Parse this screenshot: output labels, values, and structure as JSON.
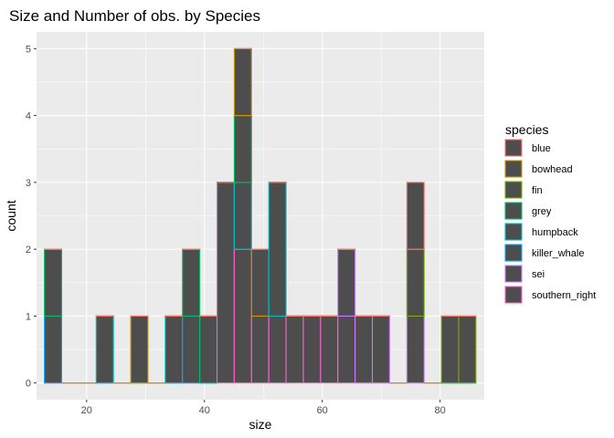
{
  "chart_data": {
    "type": "bar",
    "subtype": "stacked-histogram",
    "title": "Size and Number of obs. by Species",
    "xlabel": "size",
    "ylabel": "count",
    "xlim": [
      11.5,
      87.5
    ],
    "ylim": [
      -0.25,
      5.25
    ],
    "x_ticks": [
      20,
      40,
      60,
      80
    ],
    "y_ticks": [
      0,
      1,
      2,
      3,
      4,
      5
    ],
    "bin_width": 2.93,
    "bin_centers": [
      14.3,
      17.23,
      20.16,
      23.09,
      26.02,
      28.95,
      31.88,
      34.81,
      37.74,
      40.67,
      43.6,
      46.53,
      49.46,
      52.39,
      55.32,
      58.25,
      61.18,
      64.11,
      67.04,
      69.97,
      72.9,
      75.83,
      78.76,
      81.69,
      84.62
    ],
    "series": [
      {
        "name": "blue",
        "values": [
          0,
          0,
          0,
          0,
          0,
          0,
          0,
          0,
          0,
          0,
          0,
          0,
          0,
          0,
          0,
          0,
          0,
          0,
          0,
          0,
          0,
          1,
          0,
          0,
          0
        ]
      },
      {
        "name": "bowhead",
        "values": [
          0,
          0,
          0,
          0,
          0,
          1,
          0,
          0,
          0,
          0,
          0,
          1,
          1,
          0,
          0,
          0,
          0,
          0,
          0,
          0,
          0,
          0,
          0,
          0,
          0
        ]
      },
      {
        "name": "fin",
        "values": [
          0,
          0,
          0,
          0,
          0,
          0,
          0,
          0,
          0,
          0,
          0,
          0,
          0,
          0,
          0,
          0,
          0,
          0,
          0,
          0,
          0,
          1,
          0,
          1,
          1
        ]
      },
      {
        "name": "grey",
        "values": [
          1,
          0,
          0,
          0,
          0,
          0,
          0,
          0,
          1,
          1,
          0,
          1,
          0,
          0,
          0,
          0,
          0,
          0,
          0,
          0,
          0,
          0,
          0,
          0,
          0
        ]
      },
      {
        "name": "humpback",
        "values": [
          0,
          0,
          0,
          1,
          0,
          0,
          0,
          1,
          0,
          0,
          0,
          1,
          0,
          2,
          0,
          0,
          0,
          0,
          0,
          0,
          0,
          0,
          0,
          0,
          0
        ]
      },
      {
        "name": "killer_whale",
        "values": [
          1,
          0,
          0,
          0,
          0,
          0,
          0,
          0,
          1,
          0,
          0,
          0,
          0,
          0,
          0,
          0,
          0,
          0,
          0,
          0,
          0,
          0,
          0,
          0,
          0
        ]
      },
      {
        "name": "sei",
        "values": [
          0,
          0,
          0,
          0,
          0,
          0,
          0,
          0,
          0,
          0,
          0,
          0,
          0,
          0,
          0,
          0,
          0,
          1,
          1,
          1,
          0,
          1,
          0,
          0,
          0
        ]
      },
      {
        "name": "southern_right",
        "values": [
          0,
          0,
          0,
          0,
          0,
          0,
          0,
          0,
          0,
          0,
          3,
          2,
          1,
          1,
          1,
          1,
          1,
          1,
          0,
          0,
          0,
          0,
          0,
          0,
          0
        ]
      }
    ],
    "colors": {
      "blue": "#F8766D",
      "bowhead": "#CD9600",
      "fin": "#7CAE00",
      "grey": "#00BE67",
      "humpback": "#00BFC4",
      "killer_whale": "#00A9FF",
      "sei": "#C77CFF",
      "southern_right": "#FF61CC"
    },
    "bar_fill": "#4D4D4D",
    "panel_background": "#EBEBEB",
    "grid": true,
    "legend_title": "species",
    "legend_position": "right"
  }
}
